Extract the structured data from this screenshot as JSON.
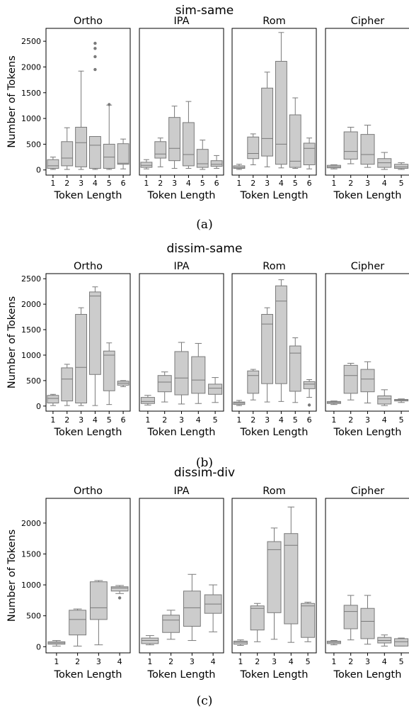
{
  "chart_data": [
    {
      "type": "box",
      "title": "sim-same",
      "caption": "(a)",
      "ylabel": "Number of Tokens",
      "ylim": [
        -100,
        2750
      ],
      "yticks": [
        0,
        500,
        1000,
        1500,
        2000,
        2500
      ],
      "xlabel": "Token Length",
      "panels": [
        {
          "name": "Ortho",
          "categories": [
            1,
            2,
            3,
            4,
            5,
            6
          ],
          "boxes": [
            {
              "x": 1,
              "min": 10,
              "q1": 30,
              "median": 80,
              "q3": 200,
              "max": 250,
              "fliers": []
            },
            {
              "x": 2,
              "min": 10,
              "q1": 80,
              "median": 230,
              "q3": 550,
              "max": 820,
              "fliers": []
            },
            {
              "x": 3,
              "min": 10,
              "q1": 60,
              "median": 530,
              "q3": 830,
              "max": 1920,
              "fliers": []
            },
            {
              "x": 4,
              "min": 10,
              "q1": 30,
              "median": 480,
              "q3": 650,
              "max": 650,
              "fliers": [
                1950,
                2200,
                2360,
                2460
              ]
            },
            {
              "x": 5,
              "min": 10,
              "q1": 30,
              "median": 250,
              "q3": 500,
              "max": 1260,
              "fliers": [
                1270
              ]
            },
            {
              "x": 6,
              "min": 20,
              "q1": 110,
              "median": 130,
              "q3": 510,
              "max": 600,
              "fliers": []
            }
          ]
        },
        {
          "name": "IPA",
          "categories": [
            1,
            2,
            3,
            4,
            5,
            6
          ],
          "boxes": [
            {
              "x": 1,
              "min": 20,
              "q1": 50,
              "median": 90,
              "q3": 150,
              "max": 200,
              "fliers": []
            },
            {
              "x": 2,
              "min": 60,
              "q1": 230,
              "median": 310,
              "q3": 550,
              "max": 620,
              "fliers": []
            },
            {
              "x": 3,
              "min": 30,
              "q1": 180,
              "median": 420,
              "q3": 1020,
              "max": 1240,
              "fliers": []
            },
            {
              "x": 4,
              "min": 30,
              "q1": 80,
              "median": 300,
              "q3": 920,
              "max": 1330,
              "fliers": []
            },
            {
              "x": 5,
              "min": 10,
              "q1": 50,
              "median": 120,
              "q3": 400,
              "max": 580,
              "fliers": []
            },
            {
              "x": 6,
              "min": 30,
              "q1": 70,
              "median": 110,
              "q3": 180,
              "max": 280,
              "fliers": []
            }
          ]
        },
        {
          "name": "Rom",
          "categories": [
            1,
            2,
            3,
            4,
            5,
            6
          ],
          "boxes": [
            {
              "x": 1,
              "min": 10,
              "q1": 30,
              "median": 50,
              "q3": 80,
              "max": 110,
              "fliers": []
            },
            {
              "x": 2,
              "min": 100,
              "q1": 220,
              "median": 320,
              "q3": 640,
              "max": 700,
              "fliers": []
            },
            {
              "x": 3,
              "min": 60,
              "q1": 270,
              "median": 610,
              "q3": 1590,
              "max": 1900,
              "fliers": []
            },
            {
              "x": 4,
              "min": 40,
              "q1": 110,
              "median": 500,
              "q3": 2110,
              "max": 2670,
              "fliers": []
            },
            {
              "x": 5,
              "min": 30,
              "q1": 50,
              "median": 170,
              "q3": 1070,
              "max": 1400,
              "fliers": []
            },
            {
              "x": 6,
              "min": 20,
              "q1": 100,
              "median": 420,
              "q3": 520,
              "max": 620,
              "fliers": []
            }
          ]
        },
        {
          "name": "Cipher",
          "categories": [
            1,
            2,
            3,
            4,
            5
          ],
          "boxes": [
            {
              "x": 1,
              "min": 20,
              "q1": 40,
              "median": 60,
              "q3": 90,
              "max": 100,
              "fliers": []
            },
            {
              "x": 2,
              "min": 120,
              "q1": 210,
              "median": 360,
              "q3": 740,
              "max": 830,
              "fliers": []
            },
            {
              "x": 3,
              "min": 50,
              "q1": 110,
              "median": 300,
              "q3": 690,
              "max": 870,
              "fliers": []
            },
            {
              "x": 4,
              "min": 10,
              "q1": 50,
              "median": 140,
              "q3": 220,
              "max": 340,
              "fliers": []
            },
            {
              "x": 5,
              "min": 10,
              "q1": 30,
              "median": 60,
              "q3": 110,
              "max": 140,
              "fliers": []
            }
          ]
        }
      ]
    },
    {
      "type": "box",
      "title": "dissim-same",
      "caption": "(b)",
      "ylabel": "Number of Tokens",
      "ylim": [
        -100,
        2600
      ],
      "yticks": [
        0,
        500,
        1000,
        1500,
        2000,
        2500
      ],
      "xlabel": "Token Length",
      "panels": [
        {
          "name": "Ortho",
          "categories": [
            1,
            2,
            3,
            4,
            5,
            6
          ],
          "boxes": [
            {
              "x": 1,
              "min": 10,
              "q1": 60,
              "median": 150,
              "q3": 210,
              "max": 230,
              "fliers": []
            },
            {
              "x": 2,
              "min": 10,
              "q1": 100,
              "median": 530,
              "q3": 750,
              "max": 820,
              "fliers": []
            },
            {
              "x": 3,
              "min": 10,
              "q1": 60,
              "median": 760,
              "q3": 1800,
              "max": 1930,
              "fliers": []
            },
            {
              "x": 4,
              "min": 10,
              "q1": 620,
              "median": 2160,
              "q3": 2240,
              "max": 2340,
              "fliers": []
            },
            {
              "x": 5,
              "min": 30,
              "q1": 300,
              "median": 1000,
              "q3": 1080,
              "max": 1240,
              "fliers": []
            },
            {
              "x": 6,
              "min": 380,
              "q1": 410,
              "median": 450,
              "q3": 490,
              "max": 500,
              "fliers": []
            }
          ]
        },
        {
          "name": "IPA",
          "categories": [
            1,
            2,
            3,
            4,
            5
          ],
          "boxes": [
            {
              "x": 1,
              "min": 20,
              "q1": 50,
              "median": 90,
              "q3": 170,
              "max": 210,
              "fliers": []
            },
            {
              "x": 2,
              "min": 80,
              "q1": 280,
              "median": 470,
              "q3": 600,
              "max": 670,
              "fliers": []
            },
            {
              "x": 3,
              "min": 40,
              "q1": 220,
              "median": 550,
              "q3": 1070,
              "max": 1250,
              "fliers": []
            },
            {
              "x": 4,
              "min": 50,
              "q1": 250,
              "median": 510,
              "q3": 970,
              "max": 1230,
              "fliers": []
            },
            {
              "x": 5,
              "min": 70,
              "q1": 230,
              "median": 350,
              "q3": 430,
              "max": 560,
              "fliers": []
            }
          ]
        },
        {
          "name": "Rom",
          "categories": [
            1,
            2,
            3,
            4,
            5,
            6
          ],
          "boxes": [
            {
              "x": 1,
              "min": 10,
              "q1": 30,
              "median": 60,
              "q3": 80,
              "max": 110,
              "fliers": []
            },
            {
              "x": 2,
              "min": 120,
              "q1": 250,
              "median": 600,
              "q3": 690,
              "max": 720,
              "fliers": []
            },
            {
              "x": 3,
              "min": 80,
              "q1": 440,
              "median": 1610,
              "q3": 1800,
              "max": 1930,
              "fliers": []
            },
            {
              "x": 4,
              "min": 90,
              "q1": 440,
              "median": 2060,
              "q3": 2360,
              "max": 2480,
              "fliers": []
            },
            {
              "x": 5,
              "min": 70,
              "q1": 290,
              "median": 1040,
              "q3": 1180,
              "max": 1340,
              "fliers": []
            },
            {
              "x": 6,
              "min": 170,
              "q1": 340,
              "median": 430,
              "q3": 480,
              "max": 520,
              "fliers": [
                20
              ]
            }
          ]
        },
        {
          "name": "Cipher",
          "categories": [
            1,
            2,
            3,
            4,
            5
          ],
          "boxes": [
            {
              "x": 1,
              "min": 30,
              "q1": 50,
              "median": 70,
              "q3": 90,
              "max": 100,
              "fliers": []
            },
            {
              "x": 2,
              "min": 120,
              "q1": 250,
              "median": 600,
              "q3": 800,
              "max": 840,
              "fliers": []
            },
            {
              "x": 3,
              "min": 60,
              "q1": 280,
              "median": 530,
              "q3": 720,
              "max": 870,
              "fliers": []
            },
            {
              "x": 4,
              "min": 10,
              "q1": 40,
              "median": 140,
              "q3": 200,
              "max": 320,
              "fliers": []
            },
            {
              "x": 5,
              "min": 70,
              "q1": 100,
              "median": 120,
              "q3": 130,
              "max": 140,
              "fliers": []
            }
          ]
        }
      ]
    },
    {
      "type": "box",
      "title": "dissim-div",
      "caption": "(c)",
      "ylabel": "Number of Tokens",
      "ylim": [
        -100,
        2400
      ],
      "yticks": [
        0,
        500,
        1000,
        1500,
        2000
      ],
      "xlabel": "Token Length",
      "panels": [
        {
          "name": "Ortho",
          "categories": [
            1,
            2,
            3,
            4
          ],
          "boxes": [
            {
              "x": 1,
              "min": 10,
              "q1": 40,
              "median": 60,
              "q3": 80,
              "max": 100,
              "fliers": []
            },
            {
              "x": 2,
              "min": 10,
              "q1": 190,
              "median": 440,
              "q3": 590,
              "max": 610,
              "fliers": []
            },
            {
              "x": 3,
              "min": 30,
              "q1": 440,
              "median": 630,
              "q3": 1050,
              "max": 1070,
              "fliers": []
            },
            {
              "x": 4,
              "min": 860,
              "q1": 900,
              "median": 950,
              "q3": 970,
              "max": 990,
              "fliers": [
                790
              ]
            }
          ]
        },
        {
          "name": "IPA",
          "categories": [
            1,
            2,
            3,
            4
          ],
          "boxes": [
            {
              "x": 1,
              "min": 30,
              "q1": 50,
              "median": 100,
              "q3": 140,
              "max": 180,
              "fliers": []
            },
            {
              "x": 2,
              "min": 120,
              "q1": 230,
              "median": 430,
              "q3": 510,
              "max": 590,
              "fliers": []
            },
            {
              "x": 3,
              "min": 100,
              "q1": 330,
              "median": 630,
              "q3": 900,
              "max": 1170,
              "fliers": []
            },
            {
              "x": 4,
              "min": 240,
              "q1": 540,
              "median": 690,
              "q3": 840,
              "max": 1000,
              "fliers": []
            }
          ]
        },
        {
          "name": "Rom",
          "categories": [
            1,
            2,
            3,
            4,
            5
          ],
          "boxes": [
            {
              "x": 1,
              "min": 20,
              "q1": 40,
              "median": 70,
              "q3": 90,
              "max": 110,
              "fliers": []
            },
            {
              "x": 2,
              "min": 80,
              "q1": 270,
              "median": 620,
              "q3": 660,
              "max": 700,
              "fliers": []
            },
            {
              "x": 3,
              "min": 120,
              "q1": 550,
              "median": 1570,
              "q3": 1700,
              "max": 1920,
              "fliers": []
            },
            {
              "x": 4,
              "min": 70,
              "q1": 370,
              "median": 1640,
              "q3": 1830,
              "max": 2260,
              "fliers": []
            },
            {
              "x": 5,
              "min": 80,
              "q1": 150,
              "median": 660,
              "q3": 700,
              "max": 720,
              "fliers": []
            }
          ]
        },
        {
          "name": "Cipher",
          "categories": [
            1,
            2,
            3,
            4,
            5
          ],
          "boxes": [
            {
              "x": 1,
              "min": 30,
              "q1": 50,
              "median": 70,
              "q3": 90,
              "max": 100,
              "fliers": []
            },
            {
              "x": 2,
              "min": 110,
              "q1": 290,
              "median": 570,
              "q3": 670,
              "max": 830,
              "fliers": []
            },
            {
              "x": 3,
              "min": 40,
              "q1": 130,
              "median": 410,
              "q3": 620,
              "max": 830,
              "fliers": []
            },
            {
              "x": 4,
              "min": 10,
              "q1": 60,
              "median": 100,
              "q3": 150,
              "max": 190,
              "fliers": []
            },
            {
              "x": 5,
              "min": 10,
              "q1": 10,
              "median": 80,
              "q3": 130,
              "max": 140,
              "fliers": []
            }
          ]
        }
      ]
    }
  ]
}
